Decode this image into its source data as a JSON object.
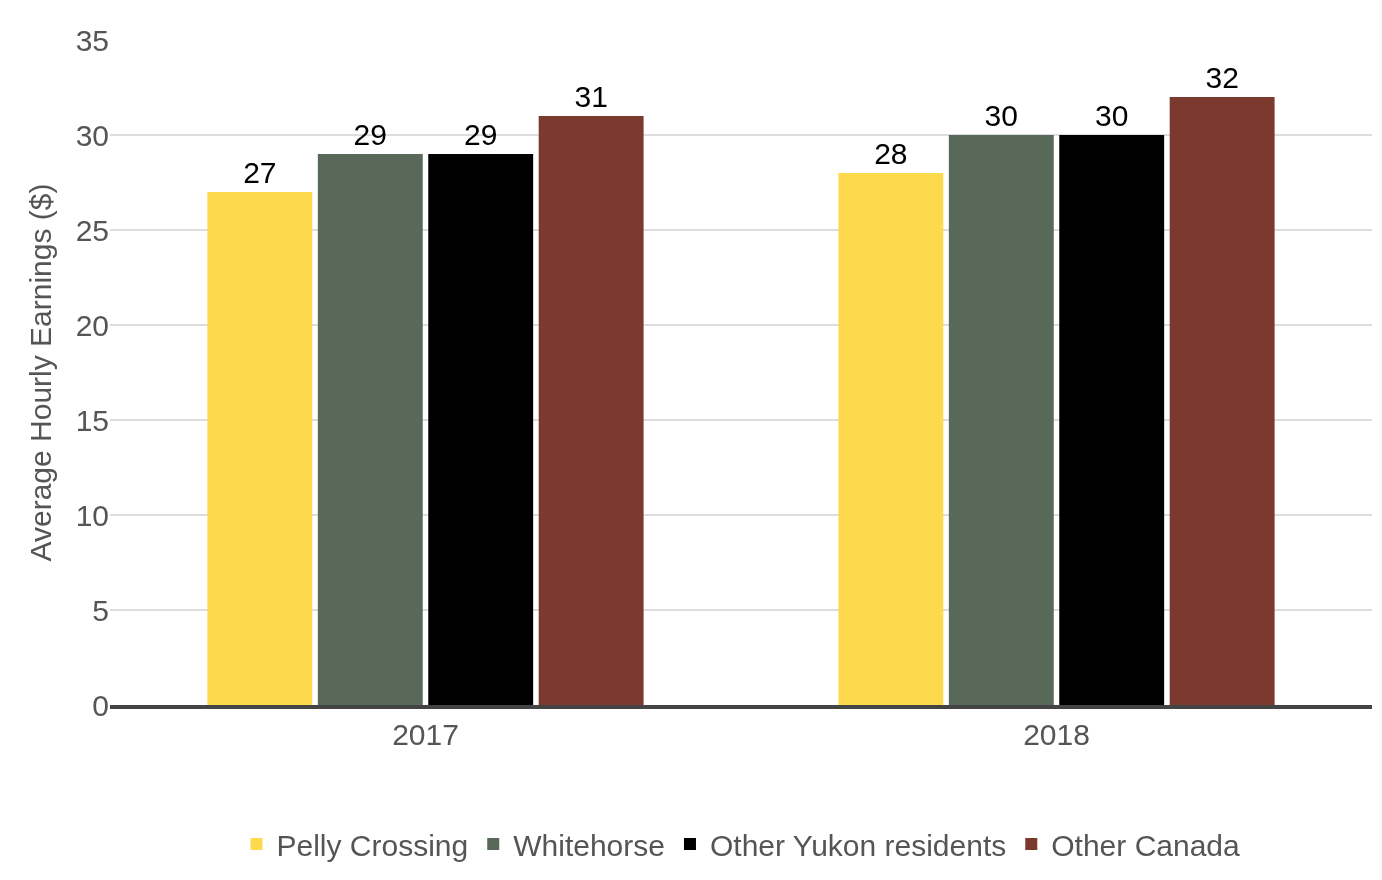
{
  "chart_data": {
    "type": "bar",
    "ylabel": "Average Hourly Earnings ($)",
    "categories": [
      "2017",
      "2018"
    ],
    "series": [
      {
        "name": "Pelly Crossing",
        "color": "#fdd94e",
        "values": [
          27,
          28
        ]
      },
      {
        "name": "Whitehorse",
        "color": "#58695a",
        "values": [
          29,
          30
        ]
      },
      {
        "name": "Other Yukon residents",
        "color": "#000000",
        "values": [
          29,
          30
        ]
      },
      {
        "name": "Other Canada",
        "color": "#7b3a2d",
        "values": [
          31,
          32
        ]
      }
    ],
    "ylim": [
      0,
      35
    ],
    "yticks": [
      0,
      5,
      10,
      15,
      20,
      25,
      30,
      35
    ],
    "grid": "y",
    "legend": "bottom",
    "data_labels": true
  }
}
